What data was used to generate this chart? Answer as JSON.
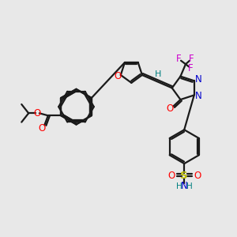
{
  "background_color": "#e8e8e8",
  "bond_color": "#1a1a1a",
  "atom_colors": {
    "O": "#ff0000",
    "N": "#0000cc",
    "F": "#cc00cc",
    "S": "#bbbb00",
    "H": "#008080",
    "C": "#1a1a1a"
  },
  "figsize": [
    3.0,
    3.0
  ],
  "dpi": 100
}
